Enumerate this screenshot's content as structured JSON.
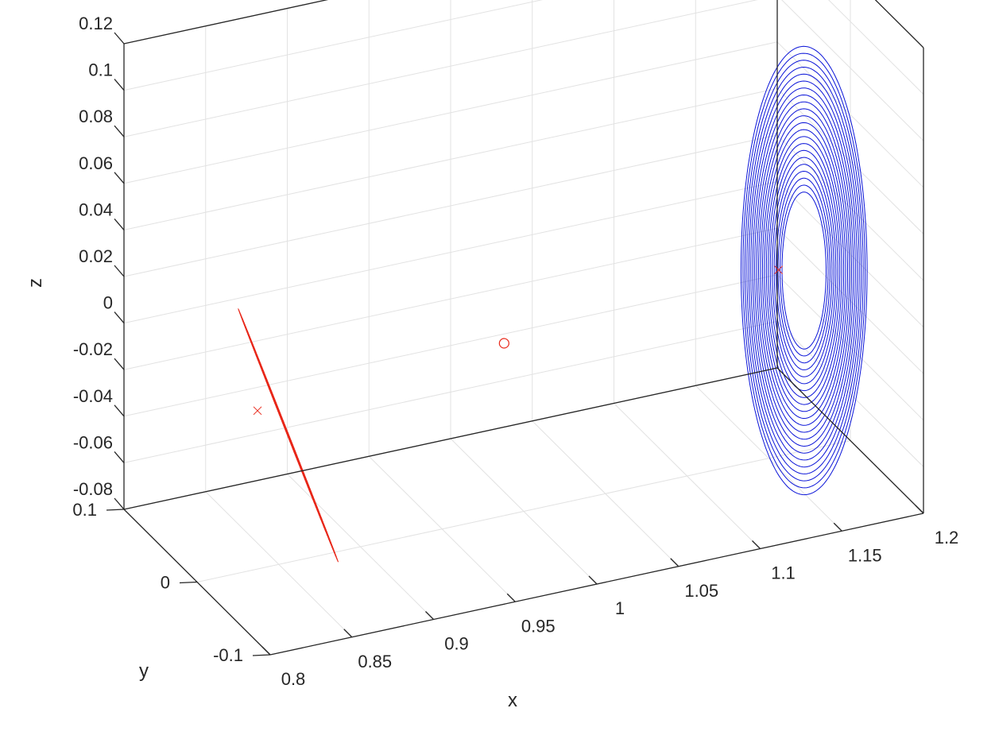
{
  "chart_data": {
    "type": "line3d",
    "xlabel": "x",
    "ylabel": "y",
    "zlabel": "z",
    "xlim": [
      0.8,
      1.2
    ],
    "ylim": [
      -0.1,
      0.1
    ],
    "zlim": [
      -0.08,
      0.12
    ],
    "x_ticks": [
      {
        "value": 0.8,
        "label": "0.8"
      },
      {
        "value": 0.85,
        "label": "0.85"
      },
      {
        "value": 0.9,
        "label": "0.9"
      },
      {
        "value": 0.95,
        "label": "0.95"
      },
      {
        "value": 1.0,
        "label": "1"
      },
      {
        "value": 1.05,
        "label": "1.05"
      },
      {
        "value": 1.1,
        "label": "1.1"
      },
      {
        "value": 1.15,
        "label": "1.15"
      },
      {
        "value": 1.2,
        "label": "1.2"
      }
    ],
    "y_ticks": [
      {
        "value": -0.1,
        "label": "-0.1"
      },
      {
        "value": 0,
        "label": "0"
      },
      {
        "value": 0.1,
        "label": "0.1"
      }
    ],
    "z_ticks": [
      {
        "value": -0.08,
        "label": "-0.08"
      },
      {
        "value": -0.06,
        "label": "-0.06"
      },
      {
        "value": -0.04,
        "label": "-0.04"
      },
      {
        "value": -0.02,
        "label": "-0.02"
      },
      {
        "value": 0,
        "label": "0"
      },
      {
        "value": 0.02,
        "label": "0.02"
      },
      {
        "value": 0.04,
        "label": "0.04"
      },
      {
        "value": 0.06,
        "label": "0.06"
      },
      {
        "value": 0.08,
        "label": "0.08"
      },
      {
        "value": 0.1,
        "label": "0.1"
      },
      {
        "value": 0.12,
        "label": "0.12"
      }
    ],
    "grid": true,
    "series": [
      {
        "color": "#e8281a",
        "marker": "line",
        "orbit_count": 20,
        "center_x": 0.837,
        "families": [
          {
            "y": -0.07,
            "z": 0.039
          },
          {
            "y": 0.0,
            "z": -0.048
          }
        ]
      },
      {
        "color": "#0a14d8",
        "marker": "line",
        "orbit_count": 22,
        "center_x": 1.155,
        "families": [
          {
            "y": -0.066,
            "z": 0.092
          },
          {
            "y": 0.006,
            "z": -0.069
          }
        ]
      }
    ],
    "markers": [
      {
        "symbol": "x",
        "color": "#e8281a",
        "x": 0.837,
        "y": 0.0,
        "z": -0.012
      },
      {
        "symbol": "circle",
        "color": "#e8281a",
        "x": 0.988,
        "y": 0.0,
        "z": -0.006
      },
      {
        "symbol": "x",
        "color": "#e8281a",
        "x": 1.156,
        "y": 0.0,
        "z": 0.0
      }
    ]
  }
}
